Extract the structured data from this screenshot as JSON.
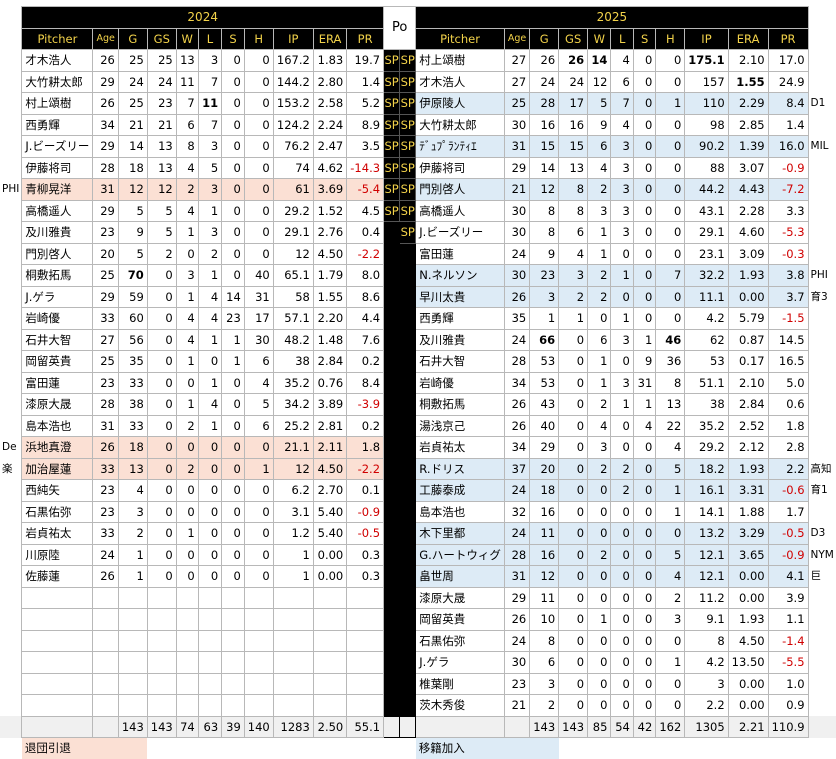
{
  "header": {
    "year_2024": "2024",
    "po": "Po",
    "year_2025": "2025",
    "columns": [
      "Pitcher",
      "Age",
      "G",
      "GS",
      "W",
      "L",
      "S",
      "H",
      "IP",
      "ERA",
      "PR"
    ]
  },
  "rows": [
    {
      "l": {
        "name": "才木浩人",
        "age": "26",
        "g": "25",
        "gs": "25",
        "w": "13",
        "l": "3",
        "s": "0",
        "h": "0",
        "ip": "167.2",
        "era": "1.83",
        "pr": "19.7"
      },
      "p1": "SP",
      "p2": "SP",
      "r": {
        "name": "村上頌樹",
        "age": "27",
        "g": "26",
        "gs": "26",
        "w": "14",
        "l": "4",
        "s": "0",
        "h": "0",
        "ip": "175.1",
        "era": "2.10",
        "pr": "17.0"
      }
    },
    {
      "l": {
        "name": "大竹耕太郎",
        "age": "29",
        "g": "24",
        "gs": "24",
        "w": "11",
        "l": "7",
        "s": "0",
        "h": "0",
        "ip": "144.2",
        "era": "2.80",
        "pr": "1.4"
      },
      "p1": "SP",
      "p2": "SP",
      "r": {
        "name": "才木浩人",
        "age": "27",
        "g": "24",
        "gs": "24",
        "w": "12",
        "l": "6",
        "s": "0",
        "h": "0",
        "ip": "157",
        "era": "1.55",
        "pr": "24.9"
      }
    },
    {
      "l": {
        "name": "村上頌樹",
        "age": "26",
        "g": "25",
        "gs": "23",
        "w": "7",
        "l": "11",
        "s": "0",
        "h": "0",
        "ip": "153.2",
        "era": "2.58",
        "pr": "5.2"
      },
      "p1": "SP",
      "p2": "SP",
      "r": {
        "name": "伊原陵人",
        "age": "25",
        "g": "28",
        "gs": "17",
        "w": "5",
        "l": "7",
        "s": "0",
        "h": "1",
        "ip": "110",
        "era": "2.29",
        "pr": "8.4"
      },
      "rnote": "D1"
    },
    {
      "l": {
        "name": "西勇輝",
        "age": "34",
        "g": "21",
        "gs": "21",
        "w": "6",
        "l": "7",
        "s": "0",
        "h": "0",
        "ip": "124.2",
        "era": "2.24",
        "pr": "8.9"
      },
      "p1": "SP",
      "p2": "SP",
      "r": {
        "name": "大竹耕太郎",
        "age": "30",
        "g": "16",
        "gs": "16",
        "w": "9",
        "l": "4",
        "s": "0",
        "h": "0",
        "ip": "98",
        "era": "2.85",
        "pr": "1.4"
      }
    },
    {
      "l": {
        "name": "J.ビーズリー",
        "age": "29",
        "g": "14",
        "gs": "13",
        "w": "8",
        "l": "3",
        "s": "0",
        "h": "0",
        "ip": "76.2",
        "era": "2.47",
        "pr": "3.5"
      },
      "p1": "SP",
      "p2": "SP",
      "r": {
        "name": "ﾃﾞｭﾌﾟﾗﾝﾃｨｴ",
        "age": "31",
        "g": "15",
        "gs": "15",
        "w": "6",
        "l": "3",
        "s": "0",
        "h": "0",
        "ip": "90.2",
        "era": "1.39",
        "pr": "16.0"
      },
      "rnote": "MIL"
    },
    {
      "l": {
        "name": "伊藤将司",
        "age": "28",
        "g": "18",
        "gs": "13",
        "w": "4",
        "l": "5",
        "s": "0",
        "h": "0",
        "ip": "74",
        "era": "4.62",
        "pr": "-14.3"
      },
      "p1": "SP",
      "p2": "SP",
      "r": {
        "name": "伊藤将司",
        "age": "29",
        "g": "14",
        "gs": "13",
        "w": "4",
        "l": "3",
        "s": "0",
        "h": "0",
        "ip": "88",
        "era": "3.07",
        "pr": "-0.9"
      }
    },
    {
      "l": {
        "name": "青柳晃洋",
        "age": "31",
        "g": "12",
        "gs": "12",
        "w": "2",
        "l": "3",
        "s": "0",
        "h": "0",
        "ip": "61",
        "era": "3.69",
        "pr": "-5.4"
      },
      "lnote": "PHI",
      "p1": "SP",
      "p2": "SP",
      "r": {
        "name": "門別啓人",
        "age": "21",
        "g": "12",
        "gs": "8",
        "w": "2",
        "l": "3",
        "s": "0",
        "h": "0",
        "ip": "44.2",
        "era": "4.43",
        "pr": "-7.2"
      }
    },
    {
      "l": {
        "name": "高橋遥人",
        "age": "29",
        "g": "5",
        "gs": "5",
        "w": "4",
        "l": "1",
        "s": "0",
        "h": "0",
        "ip": "29.2",
        "era": "1.52",
        "pr": "4.5"
      },
      "p1": "SP",
      "p2": "SP",
      "r": {
        "name": "高橋遥人",
        "age": "30",
        "g": "8",
        "gs": "8",
        "w": "3",
        "l": "3",
        "s": "0",
        "h": "0",
        "ip": "43.1",
        "era": "2.28",
        "pr": "3.3"
      }
    },
    {
      "l": {
        "name": "及川雅貴",
        "age": "23",
        "g": "9",
        "gs": "5",
        "w": "1",
        "l": "3",
        "s": "0",
        "h": "0",
        "ip": "29.1",
        "era": "2.76",
        "pr": "0.4"
      },
      "p1": "",
      "p2": "SP",
      "r": {
        "name": "J.ビーズリー",
        "age": "30",
        "g": "8",
        "gs": "6",
        "w": "1",
        "l": "3",
        "s": "0",
        "h": "0",
        "ip": "29.1",
        "era": "4.60",
        "pr": "-5.3"
      }
    },
    {
      "l": {
        "name": "門別啓人",
        "age": "20",
        "g": "5",
        "gs": "2",
        "w": "0",
        "l": "2",
        "s": "0",
        "h": "0",
        "ip": "12",
        "era": "4.50",
        "pr": "-2.2"
      },
      "p1": "",
      "p2": "",
      "r": {
        "name": "富田蓮",
        "age": "24",
        "g": "9",
        "gs": "4",
        "w": "1",
        "l": "0",
        "s": "0",
        "h": "0",
        "ip": "23.1",
        "era": "3.09",
        "pr": "-0.3"
      }
    },
    {
      "l": {
        "name": "桐敷拓馬",
        "age": "25",
        "g": "70",
        "gs": "0",
        "w": "3",
        "l": "1",
        "s": "0",
        "h": "40",
        "ip": "65.1",
        "era": "1.79",
        "pr": "8.0"
      },
      "p1": "",
      "p2": "",
      "r": {
        "name": "N.ネルソン",
        "age": "30",
        "g": "23",
        "gs": "3",
        "w": "2",
        "l": "1",
        "s": "0",
        "h": "7",
        "ip": "32.2",
        "era": "1.93",
        "pr": "3.8"
      },
      "rnote": "PHI"
    },
    {
      "l": {
        "name": "J.ゲラ",
        "age": "29",
        "g": "59",
        "gs": "0",
        "w": "1",
        "l": "4",
        "s": "14",
        "h": "31",
        "ip": "58",
        "era": "1.55",
        "pr": "8.6"
      },
      "p1": "",
      "p2": "",
      "r": {
        "name": "早川太貴",
        "age": "26",
        "g": "3",
        "gs": "2",
        "w": "2",
        "l": "0",
        "s": "0",
        "h": "0",
        "ip": "11.1",
        "era": "0.00",
        "pr": "3.7"
      },
      "rnote": "育3"
    },
    {
      "l": {
        "name": "岩崎優",
        "age": "33",
        "g": "60",
        "gs": "0",
        "w": "4",
        "l": "4",
        "s": "23",
        "h": "17",
        "ip": "57.1",
        "era": "2.20",
        "pr": "4.4"
      },
      "p1": "",
      "p2": "",
      "r": {
        "name": "西勇輝",
        "age": "35",
        "g": "1",
        "gs": "1",
        "w": "0",
        "l": "1",
        "s": "0",
        "h": "0",
        "ip": "4.2",
        "era": "5.79",
        "pr": "-1.5"
      }
    },
    {
      "l": {
        "name": "石井大智",
        "age": "27",
        "g": "56",
        "gs": "0",
        "w": "4",
        "l": "1",
        "s": "1",
        "h": "30",
        "ip": "48.2",
        "era": "1.48",
        "pr": "7.6"
      },
      "p1": "",
      "p2": "",
      "r": {
        "name": "及川雅貴",
        "age": "24",
        "g": "66",
        "gs": "0",
        "w": "6",
        "l": "3",
        "s": "1",
        "h": "46",
        "ip": "62",
        "era": "0.87",
        "pr": "14.5"
      }
    },
    {
      "l": {
        "name": "岡留英貴",
        "age": "25",
        "g": "35",
        "gs": "0",
        "w": "1",
        "l": "0",
        "s": "1",
        "h": "6",
        "ip": "38",
        "era": "2.84",
        "pr": "0.2"
      },
      "p1": "",
      "p2": "",
      "r": {
        "name": "石井大智",
        "age": "28",
        "g": "53",
        "gs": "0",
        "w": "1",
        "l": "0",
        "s": "9",
        "h": "36",
        "ip": "53",
        "era": "0.17",
        "pr": "16.5"
      }
    },
    {
      "l": {
        "name": "富田蓮",
        "age": "23",
        "g": "33",
        "gs": "0",
        "w": "0",
        "l": "1",
        "s": "0",
        "h": "4",
        "ip": "35.2",
        "era": "0.76",
        "pr": "8.4"
      },
      "p1": "",
      "p2": "",
      "r": {
        "name": "岩崎優",
        "age": "34",
        "g": "53",
        "gs": "0",
        "w": "1",
        "l": "3",
        "s": "31",
        "h": "8",
        "ip": "51.1",
        "era": "2.10",
        "pr": "5.0"
      }
    },
    {
      "l": {
        "name": "漆原大晟",
        "age": "28",
        "g": "38",
        "gs": "0",
        "w": "1",
        "l": "4",
        "s": "0",
        "h": "5",
        "ip": "34.2",
        "era": "3.89",
        "pr": "-3.9"
      },
      "p1": "",
      "p2": "",
      "r": {
        "name": "桐敷拓馬",
        "age": "26",
        "g": "43",
        "gs": "0",
        "w": "2",
        "l": "1",
        "s": "1",
        "h": "13",
        "ip": "38",
        "era": "2.84",
        "pr": "0.6"
      }
    },
    {
      "l": {
        "name": "島本浩也",
        "age": "31",
        "g": "33",
        "gs": "0",
        "w": "2",
        "l": "1",
        "s": "0",
        "h": "6",
        "ip": "25.2",
        "era": "2.81",
        "pr": "0.2"
      },
      "p1": "",
      "p2": "",
      "r": {
        "name": "湯浅京己",
        "age": "26",
        "g": "40",
        "gs": "0",
        "w": "4",
        "l": "0",
        "s": "4",
        "h": "22",
        "ip": "35.2",
        "era": "2.52",
        "pr": "1.8"
      }
    },
    {
      "l": {
        "name": "浜地真澄",
        "age": "26",
        "g": "18",
        "gs": "0",
        "w": "0",
        "l": "0",
        "s": "0",
        "h": "0",
        "ip": "21.1",
        "era": "2.11",
        "pr": "1.8"
      },
      "lnote": "De",
      "p1": "",
      "p2": "",
      "r": {
        "name": "岩貞祐太",
        "age": "34",
        "g": "29",
        "gs": "0",
        "w": "3",
        "l": "0",
        "s": "0",
        "h": "4",
        "ip": "29.2",
        "era": "2.12",
        "pr": "2.8"
      }
    },
    {
      "l": {
        "name": "加治屋蓮",
        "age": "33",
        "g": "13",
        "gs": "0",
        "w": "2",
        "l": "0",
        "s": "0",
        "h": "1",
        "ip": "12",
        "era": "4.50",
        "pr": "-2.2"
      },
      "lnote": "楽",
      "p1": "",
      "p2": "",
      "r": {
        "name": "R.ドリス",
        "age": "37",
        "g": "20",
        "gs": "0",
        "w": "2",
        "l": "2",
        "s": "0",
        "h": "5",
        "ip": "18.2",
        "era": "1.93",
        "pr": "2.2"
      },
      "rnote": "高知"
    },
    {
      "l": {
        "name": "西純矢",
        "age": "23",
        "g": "4",
        "gs": "0",
        "w": "0",
        "l": "0",
        "s": "0",
        "h": "0",
        "ip": "6.2",
        "era": "2.70",
        "pr": "0.1"
      },
      "p1": "",
      "p2": "",
      "r": {
        "name": "工藤泰成",
        "age": "24",
        "g": "18",
        "gs": "0",
        "w": "0",
        "l": "2",
        "s": "0",
        "h": "1",
        "ip": "16.1",
        "era": "3.31",
        "pr": "-0.6"
      },
      "rnote": "育1"
    },
    {
      "l": {
        "name": "石黒佑弥",
        "age": "23",
        "g": "3",
        "gs": "0",
        "w": "0",
        "l": "0",
        "s": "0",
        "h": "0",
        "ip": "3.1",
        "era": "5.40",
        "pr": "-0.9"
      },
      "p1": "",
      "p2": "",
      "r": {
        "name": "島本浩也",
        "age": "32",
        "g": "16",
        "gs": "0",
        "w": "0",
        "l": "0",
        "s": "0",
        "h": "1",
        "ip": "14.1",
        "era": "1.88",
        "pr": "1.7"
      }
    },
    {
      "l": {
        "name": "岩貞祐太",
        "age": "33",
        "g": "2",
        "gs": "0",
        "w": "1",
        "l": "0",
        "s": "0",
        "h": "0",
        "ip": "1.2",
        "era": "5.40",
        "pr": "-0.5"
      },
      "p1": "",
      "p2": "",
      "r": {
        "name": "木下里都",
        "age": "24",
        "g": "11",
        "gs": "0",
        "w": "0",
        "l": "0",
        "s": "0",
        "h": "0",
        "ip": "13.2",
        "era": "3.29",
        "pr": "-0.5"
      },
      "rnote": "D3"
    },
    {
      "l": {
        "name": "川原陸",
        "age": "24",
        "g": "1",
        "gs": "0",
        "w": "0",
        "l": "0",
        "s": "0",
        "h": "0",
        "ip": "1",
        "era": "0.00",
        "pr": "0.3"
      },
      "p1": "",
      "p2": "",
      "r": {
        "name": "G.ハートウィグ",
        "age": "28",
        "g": "16",
        "gs": "0",
        "w": "2",
        "l": "0",
        "s": "0",
        "h": "5",
        "ip": "12.1",
        "era": "3.65",
        "pr": "-0.9"
      },
      "rnote": "NYM"
    },
    {
      "l": {
        "name": "佐藤蓮",
        "age": "26",
        "g": "1",
        "gs": "0",
        "w": "0",
        "l": "0",
        "s": "0",
        "h": "0",
        "ip": "1",
        "era": "0.00",
        "pr": "0.3"
      },
      "p1": "",
      "p2": "",
      "r": {
        "name": "畠世周",
        "age": "31",
        "g": "12",
        "gs": "0",
        "w": "0",
        "l": "0",
        "s": "0",
        "h": "4",
        "ip": "12.1",
        "era": "0.00",
        "pr": "4.1"
      },
      "rnote": "巨"
    },
    {
      "l": null,
      "p1": "",
      "p2": "",
      "r": {
        "name": "漆原大晟",
        "age": "29",
        "g": "11",
        "gs": "0",
        "w": "0",
        "l": "0",
        "s": "0",
        "h": "2",
        "ip": "11.2",
        "era": "0.00",
        "pr": "3.9"
      }
    },
    {
      "l": null,
      "p1": "",
      "p2": "",
      "r": {
        "name": "岡留英貴",
        "age": "26",
        "g": "10",
        "gs": "0",
        "w": "1",
        "l": "0",
        "s": "0",
        "h": "3",
        "ip": "9.1",
        "era": "1.93",
        "pr": "1.1"
      }
    },
    {
      "l": null,
      "p1": "",
      "p2": "",
      "r": {
        "name": "石黒佑弥",
        "age": "24",
        "g": "8",
        "gs": "0",
        "w": "0",
        "l": "0",
        "s": "0",
        "h": "0",
        "ip": "8",
        "era": "4.50",
        "pr": "-1.4"
      }
    },
    {
      "l": null,
      "p1": "",
      "p2": "",
      "r": {
        "name": "J.ゲラ",
        "age": "30",
        "g": "6",
        "gs": "0",
        "w": "0",
        "l": "0",
        "s": "0",
        "h": "1",
        "ip": "4.2",
        "era": "13.50",
        "pr": "-5.5"
      }
    },
    {
      "l": null,
      "p1": "",
      "p2": "",
      "r": {
        "name": "椎葉剛",
        "age": "23",
        "g": "3",
        "gs": "0",
        "w": "0",
        "l": "0",
        "s": "0",
        "h": "0",
        "ip": "3",
        "era": "0.00",
        "pr": "1.0"
      }
    },
    {
      "l": null,
      "p1": "",
      "p2": "",
      "r": {
        "name": "茨木秀俊",
        "age": "21",
        "g": "2",
        "gs": "0",
        "w": "0",
        "l": "0",
        "s": "0",
        "h": "0",
        "ip": "2.2",
        "era": "0.00",
        "pr": "0.9"
      }
    }
  ],
  "totals": {
    "left": {
      "g": "143",
      "gs": "143",
      "w": "74",
      "l": "63",
      "s": "39",
      "h": "140",
      "ip": "1283",
      "era": "2.50",
      "pr": "55.1"
    },
    "right": {
      "g": "143",
      "gs": "143",
      "w": "85",
      "l": "54",
      "s": "42",
      "h": "162",
      "ip": "1305",
      "era": "2.21",
      "pr": "110.9"
    }
  },
  "legend": {
    "out_label": "退団引退",
    "in_label": "移籍加入"
  },
  "colors": {
    "out": "#fbe0d4",
    "in": "#ddebf6",
    "header_bg": "#000000",
    "header_text": "#f2d24a",
    "negative": "#d00000"
  },
  "highlights": {
    "left_out_rows": [
      6,
      18,
      19
    ],
    "right_in_rows": [
      2,
      4,
      6,
      10,
      11,
      19,
      20,
      22,
      23,
      24
    ],
    "bold": {
      "l2_l": true,
      "l10_g": true,
      "r0_gs": true,
      "r0_w": true,
      "r0_ip": true,
      "r1_era": true,
      "r13_g": true,
      "r13_h": true
    }
  }
}
